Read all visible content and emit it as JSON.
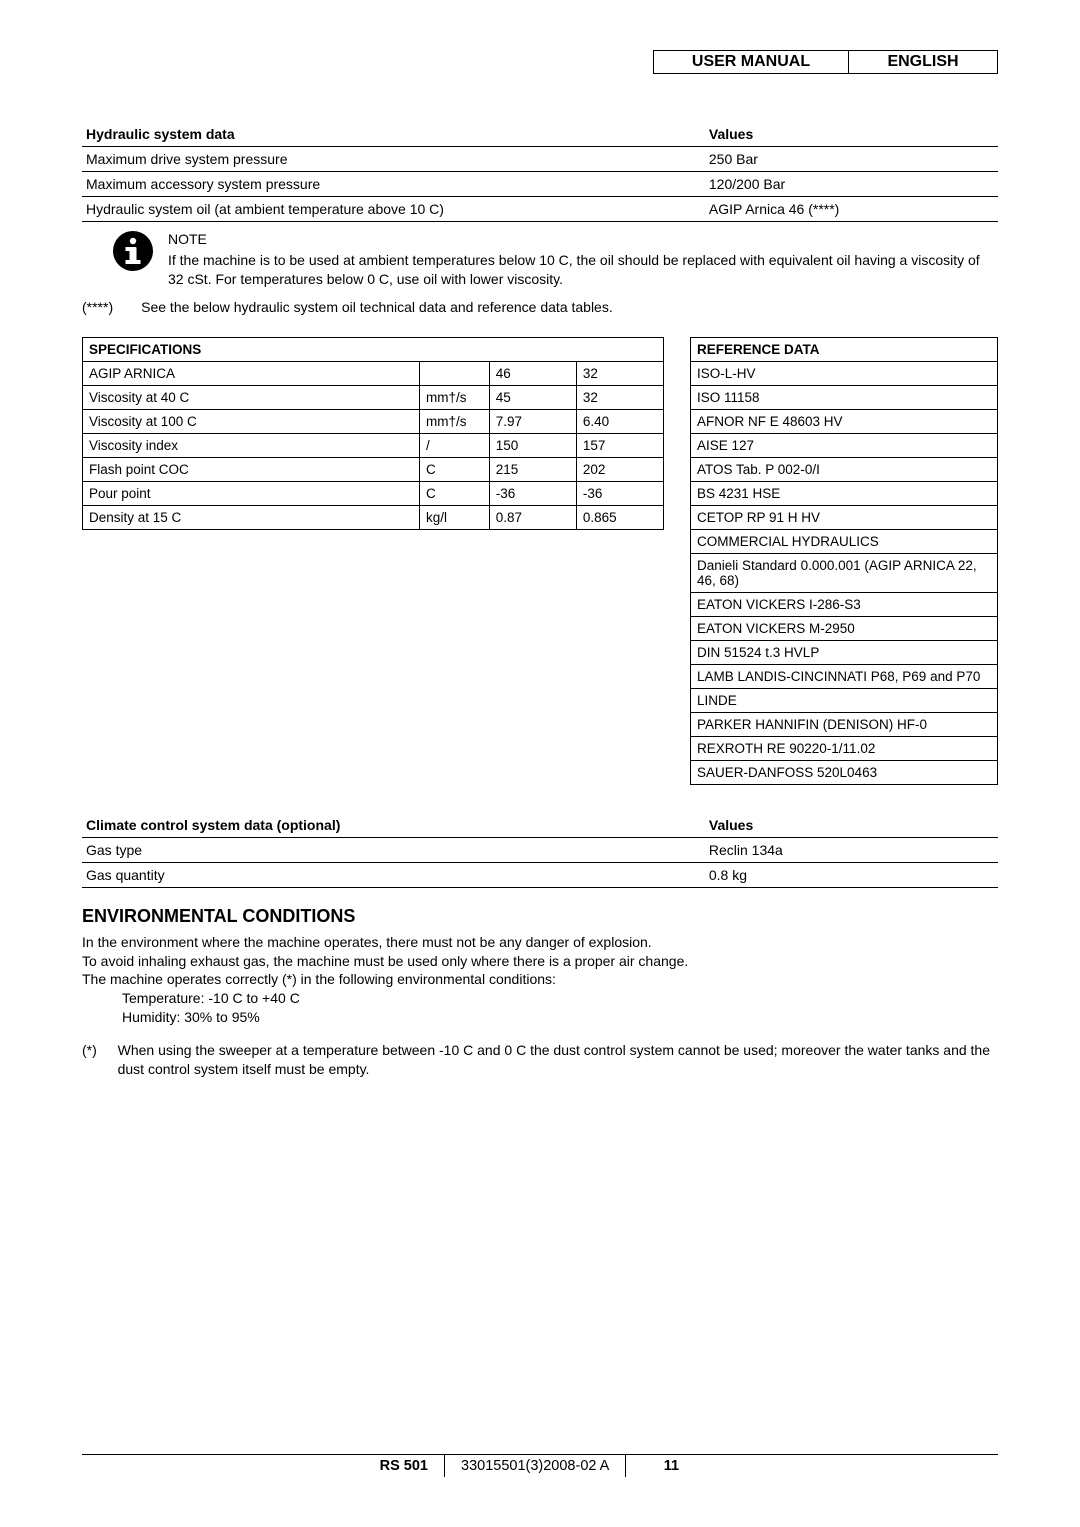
{
  "header": {
    "title": "USER MANUAL",
    "language": "ENGLISH"
  },
  "hydraulic_table": {
    "head_label": "Hydraulic system data",
    "head_value": "Values",
    "rows": [
      {
        "label": "Maximum drive system pressure",
        "value": "250 Bar"
      },
      {
        "label": "Maximum accessory system pressure",
        "value": "120/200 Bar"
      },
      {
        "label": "Hydraulic system oil (at ambient temperature above 10 C)",
        "value": "AGIP Arnica 46 (****)"
      }
    ]
  },
  "note": {
    "title": "NOTE",
    "body": "If the machine is to be used at ambient temperatures below 10 C, the oil should be replaced with equivalent oil having a viscosity of 32 cSt. For temperatures below 0 C, use oil with lower viscosity."
  },
  "footnote_ref": {
    "mark": "(****)",
    "text": "See the below hydraulic system oil technical data and reference data tables."
  },
  "spec_table": {
    "head": "SPECIFICATIONS",
    "rows": [
      {
        "c1": "AGIP ARNICA",
        "c2": "",
        "c3": "46",
        "c4": "32"
      },
      {
        "c1": "Viscosity at 40 C",
        "c2": "mm†/s",
        "c3": "45",
        "c4": "32"
      },
      {
        "c1": "Viscosity at 100 C",
        "c2": "mm†/s",
        "c3": "7.97",
        "c4": "6.40"
      },
      {
        "c1": "Viscosity index",
        "c2": "/",
        "c3": "150",
        "c4": "157"
      },
      {
        "c1": "Flash point COC",
        "c2": "C",
        "c3": "215",
        "c4": "202"
      },
      {
        "c1": "Pour point",
        "c2": "C",
        "c3": "-36",
        "c4": "-36"
      },
      {
        "c1": "Density at 15 C",
        "c2": "kg/l",
        "c3": "0.87",
        "c4": "0.865"
      }
    ]
  },
  "ref_table": {
    "head": "REFERENCE DATA",
    "rows": [
      "ISO-L-HV",
      "ISO 11158",
      "AFNOR NF E 48603 HV",
      "AISE 127",
      "ATOS Tab. P 002-0/I",
      "BS 4231 HSE",
      "CETOP RP 91 H HV",
      "COMMERCIAL HYDRAULICS",
      "Danieli Standard 0.000.001 (AGIP ARNICA 22, 46, 68)",
      "EATON VICKERS I-286-S3",
      "EATON VICKERS M-2950",
      "DIN 51524 t.3 HVLP",
      "LAMB LANDIS-CINCINNATI P68, P69 and P70",
      "LINDE",
      "PARKER HANNIFIN (DENISON) HF-0",
      "REXROTH RE 90220-1/11.02",
      "SAUER-DANFOSS 520L0463"
    ]
  },
  "climate_table": {
    "head_label": "Climate control system data (optional)",
    "head_value": "Values",
    "rows": [
      {
        "label": "Gas type",
        "value": "Reclin 134a"
      },
      {
        "label": "Gas quantity",
        "value": "0.8 kg"
      }
    ]
  },
  "env": {
    "heading": "ENVIRONMENTAL CONDITIONS",
    "line1": "In the environment where the machine operates, there must not be any danger of explosion.",
    "line2": "To avoid inhaling exhaust gas, the machine must be used only where there is a proper air change.",
    "line3": "The machine operates correctly (*) in the following environmental conditions:",
    "bullet1": "Temperature: -10 C to +40 C",
    "bullet2": "Humidity: 30% to 95%",
    "star_mark": "(*)",
    "star_text": "When using the sweeper at a temperature between -10 C and 0 C the dust control system cannot be used; moreover the water tanks and the dust control system itself must be empty."
  },
  "footer": {
    "model": "RS 501",
    "doc": "33015501(3)2008-02 A",
    "page": "11"
  }
}
